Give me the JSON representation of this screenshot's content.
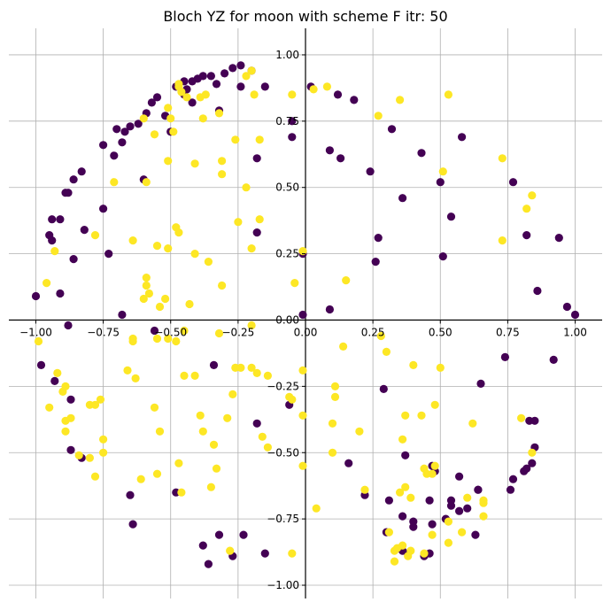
{
  "chart_data": {
    "type": "scatter",
    "title": "Bloch YZ for moon with scheme F itr: 50",
    "xlabel": "",
    "ylabel": "",
    "xlim": [
      -1.1,
      1.1
    ],
    "ylim": [
      -1.05,
      1.1
    ],
    "grid": true,
    "spines": "centered at origin",
    "x_ticks": [
      -1.0,
      -0.75,
      -0.5,
      -0.25,
      0.0,
      0.25,
      0.5,
      0.75,
      1.0
    ],
    "x_tick_labels": [
      "−1.00",
      "−0.75",
      "−0.50",
      "−0.25",
      "0.00",
      "0.25",
      "0.50",
      "0.75",
      "1.00"
    ],
    "y_ticks": [
      -1.0,
      -0.75,
      -0.5,
      -0.25,
      0.0,
      0.25,
      0.5,
      0.75,
      1.0
    ],
    "y_tick_labels": [
      "−1.00",
      "−0.75",
      "−0.50",
      "−0.25",
      "0.00",
      "0.25",
      "0.50",
      "0.75",
      "1.00"
    ],
    "colors": {
      "class0": "#440154",
      "class1": "#fde725"
    },
    "series": [
      {
        "color": "#440154",
        "points": [
          [
            -0.35,
            0.92
          ],
          [
            -0.38,
            0.92
          ],
          [
            -0.4,
            0.91
          ],
          [
            -0.42,
            0.9
          ],
          [
            -0.45,
            0.9
          ],
          [
            -0.48,
            0.88
          ],
          [
            -0.44,
            0.87
          ],
          [
            -0.33,
            0.89
          ],
          [
            -0.3,
            0.93
          ],
          [
            -0.27,
            0.95
          ],
          [
            -0.24,
            0.96
          ],
          [
            -0.2,
            0.94
          ],
          [
            -0.15,
            0.88
          ],
          [
            -0.24,
            0.88
          ],
          [
            -0.42,
            0.82
          ],
          [
            -0.45,
            0.85
          ],
          [
            -0.52,
            0.77
          ],
          [
            -0.55,
            0.84
          ],
          [
            -0.57,
            0.82
          ],
          [
            -0.59,
            0.78
          ],
          [
            -0.62,
            0.74
          ],
          [
            -0.65,
            0.73
          ],
          [
            -0.67,
            0.71
          ],
          [
            -0.7,
            0.72
          ],
          [
            -0.68,
            0.67
          ],
          [
            -0.75,
            0.66
          ],
          [
            -0.71,
            0.62
          ],
          [
            -0.83,
            0.56
          ],
          [
            -0.86,
            0.53
          ],
          [
            -0.88,
            0.48
          ],
          [
            -0.89,
            0.48
          ],
          [
            -0.91,
            0.38
          ],
          [
            -0.94,
            0.38
          ],
          [
            -0.95,
            0.32
          ],
          [
            -0.94,
            0.3
          ],
          [
            -0.82,
            0.34
          ],
          [
            -0.75,
            0.42
          ],
          [
            -0.73,
            0.25
          ],
          [
            -0.6,
            0.53
          ],
          [
            -0.86,
            0.23
          ],
          [
            -1.0,
            0.09
          ],
          [
            -0.91,
            0.1
          ],
          [
            -0.88,
            -0.02
          ],
          [
            -0.68,
            0.02
          ],
          [
            -0.56,
            -0.04
          ],
          [
            -0.5,
            0.71
          ],
          [
            -0.32,
            0.79
          ],
          [
            -0.18,
            0.61
          ],
          [
            -0.18,
            0.33
          ],
          [
            -0.05,
            0.75
          ],
          [
            -0.05,
            0.69
          ],
          [
            -0.01,
            0.25
          ],
          [
            -0.01,
            0.02
          ],
          [
            0.02,
            0.88
          ],
          [
            0.09,
            0.64
          ],
          [
            0.12,
            0.85
          ],
          [
            0.13,
            0.61
          ],
          [
            0.09,
            0.04
          ],
          [
            0.18,
            0.83
          ],
          [
            0.24,
            0.56
          ],
          [
            0.32,
            0.72
          ],
          [
            0.26,
            0.22
          ],
          [
            0.27,
            0.31
          ],
          [
            0.36,
            0.46
          ],
          [
            0.43,
            0.63
          ],
          [
            0.5,
            0.52
          ],
          [
            0.51,
            0.24
          ],
          [
            0.54,
            0.39
          ],
          [
            0.58,
            0.69
          ],
          [
            0.77,
            0.52
          ],
          [
            0.82,
            0.32
          ],
          [
            0.86,
            0.11
          ],
          [
            0.94,
            0.31
          ],
          [
            0.97,
            0.05
          ],
          [
            1.0,
            0.02
          ],
          [
            -0.98,
            -0.17
          ],
          [
            -0.93,
            -0.23
          ],
          [
            -0.87,
            -0.3
          ],
          [
            -0.87,
            -0.49
          ],
          [
            -0.83,
            -0.52
          ],
          [
            -0.65,
            -0.66
          ],
          [
            -0.64,
            -0.77
          ],
          [
            -0.48,
            -0.65
          ],
          [
            -0.34,
            -0.17
          ],
          [
            -0.38,
            -0.85
          ],
          [
            -0.36,
            -0.92
          ],
          [
            -0.32,
            -0.81
          ],
          [
            -0.27,
            -0.89
          ],
          [
            -0.23,
            -0.81
          ],
          [
            -0.18,
            -0.39
          ],
          [
            -0.15,
            -0.88
          ],
          [
            -0.06,
            -0.32
          ],
          [
            0.16,
            -0.54
          ],
          [
            0.22,
            -0.66
          ],
          [
            0.29,
            -0.26
          ],
          [
            0.3,
            -0.8
          ],
          [
            0.31,
            -0.68
          ],
          [
            0.36,
            -0.74
          ],
          [
            0.37,
            -0.51
          ],
          [
            0.4,
            -0.76
          ],
          [
            0.4,
            -0.78
          ],
          [
            0.36,
            -0.87
          ],
          [
            0.38,
            -0.88
          ],
          [
            0.44,
            -0.89
          ],
          [
            0.46,
            -0.88
          ],
          [
            0.47,
            -0.77
          ],
          [
            0.46,
            -0.68
          ],
          [
            0.47,
            -0.55
          ],
          [
            0.48,
            -0.57
          ],
          [
            0.52,
            -0.75
          ],
          [
            0.54,
            -0.68
          ],
          [
            0.54,
            -0.7
          ],
          [
            0.57,
            -0.59
          ],
          [
            0.57,
            -0.72
          ],
          [
            0.6,
            -0.71
          ],
          [
            0.63,
            -0.81
          ],
          [
            0.64,
            -0.64
          ],
          [
            0.64,
            -0.64
          ],
          [
            0.65,
            -0.24
          ],
          [
            0.76,
            -0.64
          ],
          [
            0.77,
            -0.6
          ],
          [
            0.74,
            -0.14
          ],
          [
            0.81,
            -0.57
          ],
          [
            0.82,
            -0.56
          ],
          [
            0.83,
            -0.38
          ],
          [
            0.84,
            -0.54
          ],
          [
            0.85,
            -0.48
          ],
          [
            0.85,
            -0.38
          ],
          [
            0.92,
            -0.15
          ]
        ]
      },
      {
        "color": "#fde725",
        "points": [
          [
            -0.2,
            0.94
          ],
          [
            -0.22,
            0.92
          ],
          [
            -0.19,
            0.85
          ],
          [
            -0.17,
            0.68
          ],
          [
            -0.26,
            0.68
          ],
          [
            -0.32,
            0.78
          ],
          [
            -0.31,
            0.6
          ],
          [
            -0.31,
            0.55
          ],
          [
            -0.37,
            0.85
          ],
          [
            -0.39,
            0.84
          ],
          [
            -0.38,
            0.76
          ],
          [
            -0.41,
            0.59
          ],
          [
            -0.44,
            0.84
          ],
          [
            -0.46,
            0.86
          ],
          [
            -0.47,
            0.88
          ],
          [
            -0.47,
            0.89
          ],
          [
            -0.51,
            0.8
          ],
          [
            -0.5,
            0.76
          ],
          [
            -0.49,
            0.71
          ],
          [
            -0.51,
            0.6
          ],
          [
            -0.56,
            0.7
          ],
          [
            -0.59,
            0.52
          ],
          [
            -0.6,
            0.76
          ],
          [
            -0.71,
            0.52
          ],
          [
            -0.78,
            0.32
          ],
          [
            -0.93,
            0.26
          ],
          [
            -0.96,
            0.14
          ],
          [
            -0.64,
            0.3
          ],
          [
            -0.55,
            0.28
          ],
          [
            -0.51,
            0.27
          ],
          [
            -0.48,
            0.35
          ],
          [
            -0.47,
            0.33
          ],
          [
            -0.41,
            0.25
          ],
          [
            -0.36,
            0.22
          ],
          [
            -0.25,
            0.37
          ],
          [
            -0.2,
            0.27
          ],
          [
            -0.17,
            0.38
          ],
          [
            -0.31,
            0.13
          ],
          [
            -0.43,
            0.06
          ],
          [
            -0.52,
            0.08
          ],
          [
            -0.54,
            0.05
          ],
          [
            -0.58,
            0.1
          ],
          [
            -0.6,
            0.08
          ],
          [
            -0.59,
            0.13
          ],
          [
            -0.59,
            0.16
          ],
          [
            -0.22,
            0.5
          ],
          [
            -0.05,
            0.85
          ],
          [
            -0.04,
            0.14
          ],
          [
            -0.01,
            0.26
          ],
          [
            0.03,
            0.87
          ],
          [
            0.08,
            0.88
          ],
          [
            0.15,
            0.15
          ],
          [
            0.27,
            0.77
          ],
          [
            0.35,
            0.83
          ],
          [
            0.51,
            0.56
          ],
          [
            0.53,
            0.85
          ],
          [
            0.73,
            0.61
          ],
          [
            0.73,
            0.3
          ],
          [
            0.82,
            0.42
          ],
          [
            0.84,
            0.47
          ],
          [
            -0.99,
            -0.08
          ],
          [
            -0.95,
            -0.33
          ],
          [
            -0.92,
            -0.2
          ],
          [
            -0.9,
            -0.27
          ],
          [
            -0.89,
            -0.25
          ],
          [
            -0.89,
            -0.38
          ],
          [
            -0.87,
            -0.37
          ],
          [
            -0.89,
            -0.42
          ],
          [
            -0.84,
            -0.51
          ],
          [
            -0.8,
            -0.52
          ],
          [
            -0.8,
            -0.32
          ],
          [
            -0.78,
            -0.32
          ],
          [
            -0.76,
            -0.3
          ],
          [
            -0.75,
            -0.45
          ],
          [
            -0.75,
            -0.5
          ],
          [
            -0.78,
            -0.59
          ],
          [
            -0.66,
            -0.19
          ],
          [
            -0.64,
            -0.08
          ],
          [
            -0.64,
            -0.07
          ],
          [
            -0.63,
            -0.22
          ],
          [
            -0.61,
            -0.6
          ],
          [
            -0.56,
            -0.33
          ],
          [
            -0.55,
            -0.58
          ],
          [
            -0.54,
            -0.42
          ],
          [
            -0.55,
            -0.07
          ],
          [
            -0.51,
            -0.07
          ],
          [
            -0.48,
            -0.08
          ],
          [
            -0.47,
            -0.54
          ],
          [
            -0.46,
            -0.65
          ],
          [
            -0.45,
            -0.21
          ],
          [
            -0.45,
            -0.04
          ],
          [
            -0.41,
            -0.21
          ],
          [
            -0.39,
            -0.36
          ],
          [
            -0.38,
            -0.42
          ],
          [
            -0.35,
            -0.63
          ],
          [
            -0.34,
            -0.47
          ],
          [
            -0.33,
            -0.56
          ],
          [
            -0.32,
            -0.05
          ],
          [
            -0.29,
            -0.37
          ],
          [
            -0.26,
            -0.18
          ],
          [
            -0.27,
            -0.28
          ],
          [
            -0.24,
            -0.18
          ],
          [
            -0.28,
            -0.87
          ],
          [
            -0.2,
            -0.18
          ],
          [
            -0.16,
            -0.44
          ],
          [
            -0.18,
            -0.2
          ],
          [
            -0.2,
            -0.02
          ],
          [
            -0.14,
            -0.21
          ],
          [
            -0.14,
            -0.48
          ],
          [
            -0.06,
            -0.29
          ],
          [
            -0.05,
            -0.3
          ],
          [
            -0.05,
            -0.88
          ],
          [
            -0.01,
            -0.19
          ],
          [
            -0.01,
            -0.36
          ],
          [
            -0.01,
            -0.55
          ],
          [
            0.04,
            -0.71
          ],
          [
            0.1,
            -0.39
          ],
          [
            0.11,
            -0.29
          ],
          [
            0.11,
            -0.25
          ],
          [
            0.1,
            -0.5
          ],
          [
            0.14,
            -0.1
          ],
          [
            0.2,
            -0.42
          ],
          [
            0.22,
            -0.64
          ],
          [
            0.28,
            -0.06
          ],
          [
            0.3,
            -0.12
          ],
          [
            0.31,
            -0.8
          ],
          [
            0.33,
            -0.91
          ],
          [
            0.34,
            -0.86
          ],
          [
            0.33,
            -0.87
          ],
          [
            0.36,
            -0.85
          ],
          [
            0.38,
            -0.89
          ],
          [
            0.39,
            -0.87
          ],
          [
            0.36,
            -0.45
          ],
          [
            0.37,
            -0.36
          ],
          [
            0.39,
            -0.67
          ],
          [
            0.35,
            -0.65
          ],
          [
            0.37,
            -0.63
          ],
          [
            0.4,
            -0.17
          ],
          [
            0.43,
            -0.36
          ],
          [
            0.44,
            -0.88
          ],
          [
            0.47,
            -0.81
          ],
          [
            0.48,
            -0.32
          ],
          [
            0.44,
            -0.56
          ],
          [
            0.45,
            -0.58
          ],
          [
            0.47,
            -0.58
          ],
          [
            0.48,
            -0.55
          ],
          [
            0.5,
            -0.18
          ],
          [
            0.53,
            -0.76
          ],
          [
            0.53,
            -0.84
          ],
          [
            0.58,
            -0.8
          ],
          [
            0.6,
            -0.67
          ],
          [
            0.62,
            -0.39
          ],
          [
            0.66,
            -0.68
          ],
          [
            0.66,
            -0.69
          ],
          [
            0.66,
            -0.74
          ],
          [
            0.8,
            -0.37
          ],
          [
            0.84,
            -0.5
          ]
        ]
      }
    ]
  }
}
